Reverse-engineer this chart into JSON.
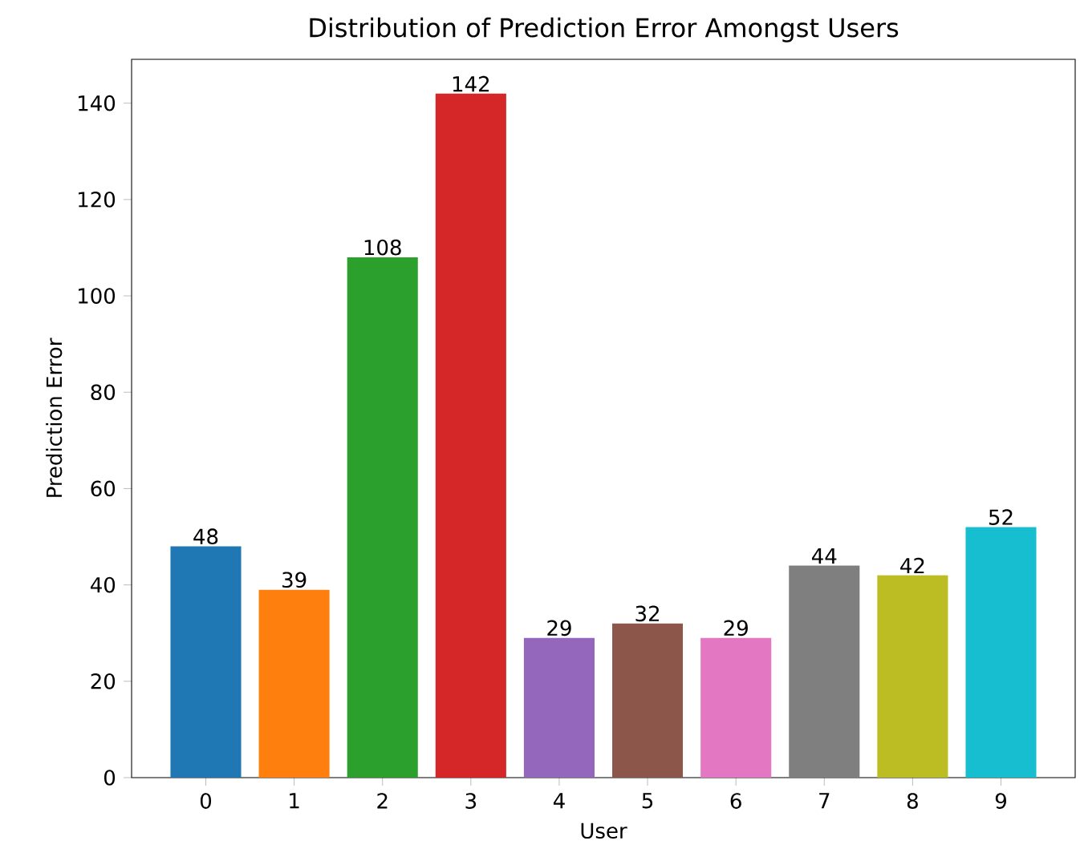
{
  "chart_data": {
    "type": "bar",
    "title": "Distribution of Prediction Error Amongst Users",
    "xlabel": "User",
    "ylabel": "Prediction Error",
    "categories": [
      "0",
      "1",
      "2",
      "3",
      "4",
      "5",
      "6",
      "7",
      "8",
      "9"
    ],
    "values": [
      48,
      39,
      108,
      142,
      29,
      32,
      29,
      44,
      42,
      52
    ],
    "colors": [
      "#1f77b4",
      "#ff7f0e",
      "#2ca02c",
      "#d62728",
      "#9467bd",
      "#8c564b",
      "#e377c2",
      "#7f7f7f",
      "#bcbd22",
      "#17becf"
    ],
    "ylim": [
      0,
      149.1
    ],
    "yticks": [
      0,
      20,
      40,
      60,
      80,
      100,
      120,
      140
    ],
    "data_labels": true
  }
}
